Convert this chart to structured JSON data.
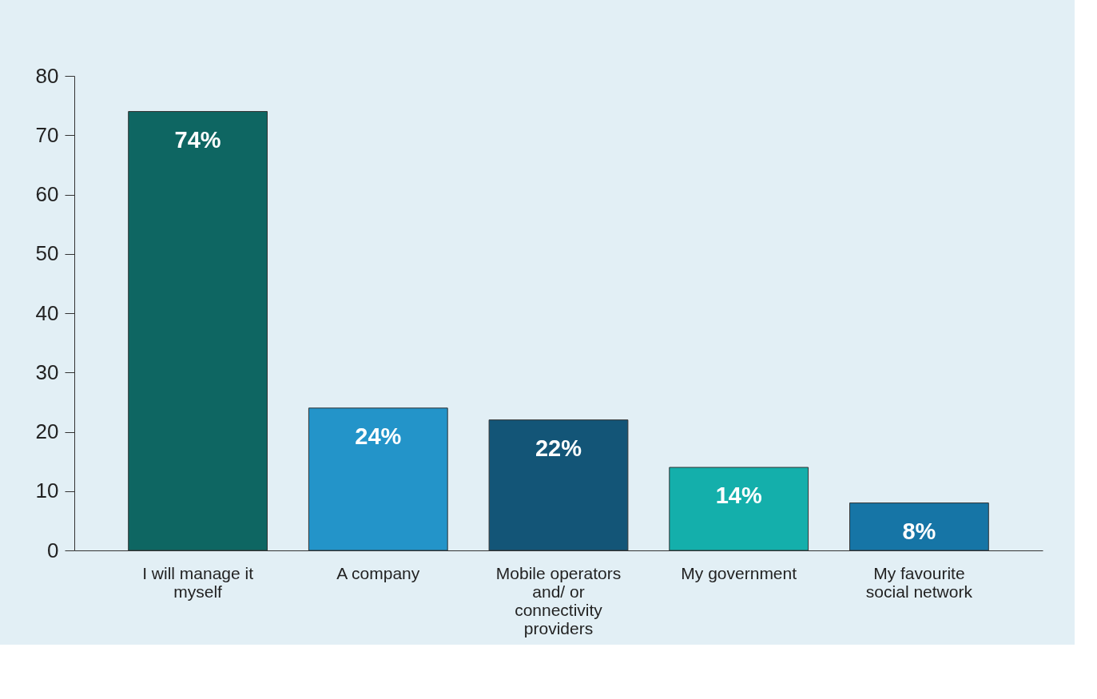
{
  "chart_data": {
    "type": "bar",
    "categories": [
      "I will manage it myself",
      "A company",
      "Mobile operators and/ or connectivity providers",
      "My government",
      "My favourite social network"
    ],
    "values": [
      74,
      24,
      22,
      14,
      8
    ],
    "colors": [
      "#0e6662",
      "#2394c9",
      "#135577",
      "#14afab",
      "#1675a6"
    ],
    "value_labels": [
      "74%",
      "24%",
      "22%",
      "14%",
      "8%"
    ],
    "ylim": [
      0,
      80
    ],
    "yticks": [
      0,
      10,
      20,
      30,
      40,
      50,
      60,
      70,
      80
    ],
    "grid": false
  }
}
